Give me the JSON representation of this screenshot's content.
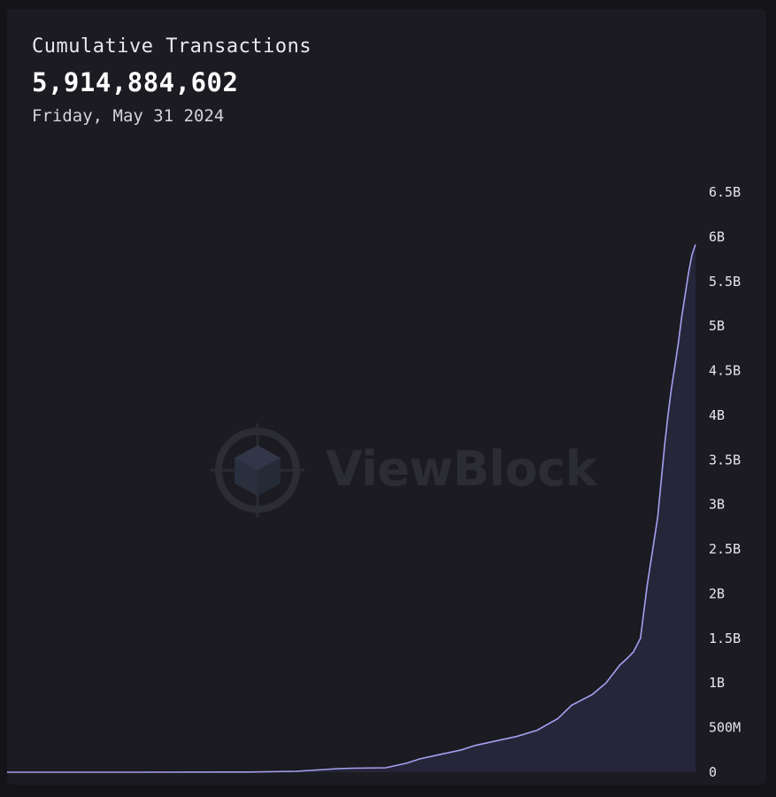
{
  "header": {
    "title": "Cumulative Transactions",
    "value": "5,914,884,602",
    "date": "Friday, May 31 2024"
  },
  "watermark": {
    "text": "ViewBlock"
  },
  "colors": {
    "line": "#a5a0f0",
    "area": "#27253a",
    "background": "#1b1b21"
  },
  "chart_data": {
    "type": "area",
    "title": "Cumulative Transactions",
    "xlabel": "",
    "ylabel": "",
    "ylim": [
      0,
      6500000000
    ],
    "y_ticks": [
      "0",
      "500M",
      "1B",
      "1.5B",
      "2B",
      "2.5B",
      "3B",
      "3.5B",
      "4B",
      "4.5B",
      "5B",
      "5.5B",
      "6B",
      "6.5B"
    ],
    "y_tick_values": [
      0,
      500000000,
      1000000000,
      1500000000,
      2000000000,
      2500000000,
      3000000000,
      3500000000,
      4000000000,
      4500000000,
      5000000000,
      5500000000,
      6000000000,
      6500000000
    ],
    "grid": false,
    "series": [
      {
        "x": [
          0,
          0.2,
          0.35,
          0.42,
          0.46,
          0.48,
          0.5,
          0.55,
          0.58,
          0.6,
          0.63,
          0.66,
          0.68,
          0.71,
          0.74,
          0.77,
          0.8,
          0.82,
          0.85,
          0.87,
          0.88,
          0.89,
          0.9,
          0.91,
          0.92,
          0.93,
          0.94,
          0.945,
          0.95,
          0.955,
          0.96,
          0.965,
          0.97,
          0.975,
          0.98,
          0.985,
          0.99,
          0.995,
          1.0
        ],
        "values": [
          0,
          0,
          2000000,
          10000000,
          30000000,
          40000000,
          45000000,
          50000000,
          100000000,
          150000000,
          200000000,
          250000000,
          300000000,
          350000000,
          400000000,
          470000000,
          600000000,
          750000000,
          870000000,
          1000000000,
          1100000000,
          1200000000,
          1270000000,
          1350000000,
          1500000000,
          2100000000,
          2600000000,
          2850000000,
          3250000000,
          3650000000,
          4000000000,
          4300000000,
          4550000000,
          4800000000,
          5100000000,
          5350000000,
          5600000000,
          5800000000,
          5914884602
        ]
      }
    ]
  }
}
